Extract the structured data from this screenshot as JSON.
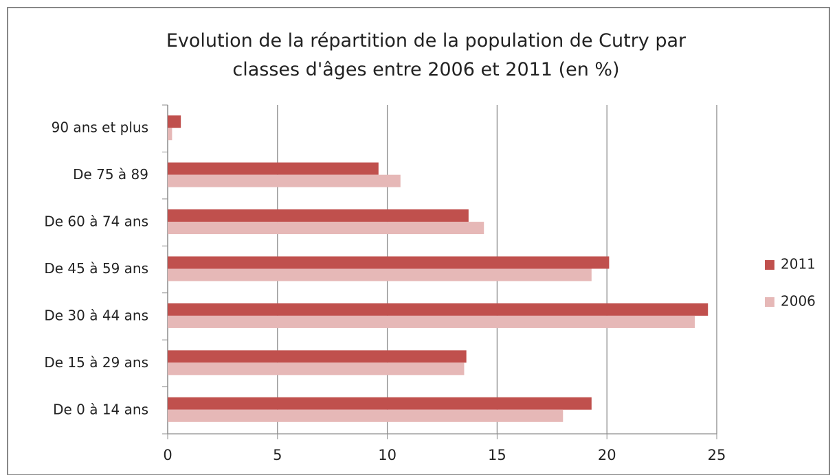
{
  "chart_data": {
    "type": "bar",
    "orientation": "horizontal",
    "title": "Evolution de la répartition de la population de Cutry par classes d'âges entre 2006 et 2011 (en %)",
    "categories": [
      "De 0 à 14 ans",
      "De 15 à 29 ans",
      "De 30 à 44 ans",
      "De 45 à 59 ans",
      "De 60 à 74 ans",
      "De 75 à 89",
      "90 ans et plus"
    ],
    "series": [
      {
        "name": "2011",
        "color": "#c0504d",
        "values": [
          19.3,
          13.6,
          24.6,
          20.1,
          13.7,
          9.6,
          0.6
        ]
      },
      {
        "name": "2006",
        "color": "#e6b8b7",
        "values": [
          18.0,
          13.5,
          24.0,
          19.3,
          14.4,
          10.6,
          0.2
        ]
      }
    ],
    "xlim": [
      0,
      25
    ],
    "xticks": [
      0,
      5,
      10,
      15,
      20,
      25
    ],
    "grid": true,
    "legend": "right"
  }
}
